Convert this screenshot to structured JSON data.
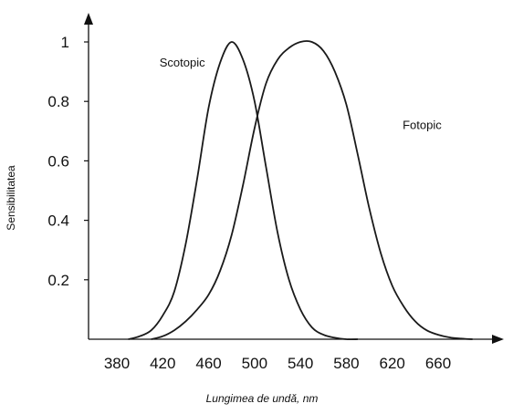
{
  "chart_data": {
    "type": "line",
    "xlabel": "Lungimea de undă, nm",
    "ylabel": "Sensibilitatea",
    "xlim": [
      370,
      700
    ],
    "ylim": [
      0,
      1.05
    ],
    "x_ticks": [
      380,
      420,
      460,
      500,
      540,
      580,
      620,
      660
    ],
    "y_ticks": [
      0.2,
      0.4,
      0.6,
      0.8,
      1
    ],
    "y_tick_labels": [
      "0.2",
      "0.4",
      "0.6",
      "0.8",
      "1"
    ],
    "grid": false,
    "series": [
      {
        "name": "Scotopic",
        "x": [
          390,
          400,
          410,
          420,
          430,
          440,
          450,
          460,
          470,
          480,
          490,
          500,
          510,
          520,
          530,
          540,
          550,
          560,
          570,
          580,
          590
        ],
        "y": [
          0.0,
          0.01,
          0.03,
          0.08,
          0.16,
          0.32,
          0.54,
          0.78,
          0.93,
          1.0,
          0.94,
          0.8,
          0.58,
          0.36,
          0.2,
          0.1,
          0.04,
          0.015,
          0.005,
          0.0,
          0.0
        ]
      },
      {
        "name": "Fotopic",
        "x": [
          410,
          420,
          430,
          440,
          450,
          460,
          470,
          480,
          490,
          500,
          510,
          520,
          530,
          540,
          550,
          560,
          570,
          580,
          590,
          600,
          610,
          620,
          630,
          640,
          650,
          660,
          670,
          680,
          690
        ],
        "y": [
          0.0,
          0.01,
          0.03,
          0.06,
          0.1,
          0.15,
          0.23,
          0.35,
          0.52,
          0.71,
          0.86,
          0.94,
          0.98,
          1.0,
          1.0,
          0.97,
          0.9,
          0.79,
          0.62,
          0.44,
          0.29,
          0.18,
          0.11,
          0.06,
          0.03,
          0.015,
          0.006,
          0.002,
          0.0
        ]
      }
    ],
    "annotations": [
      {
        "text": "Scotopic",
        "x": 437,
        "y": 0.93
      },
      {
        "text": "Fotopic",
        "x": 646,
        "y": 0.72
      }
    ]
  }
}
